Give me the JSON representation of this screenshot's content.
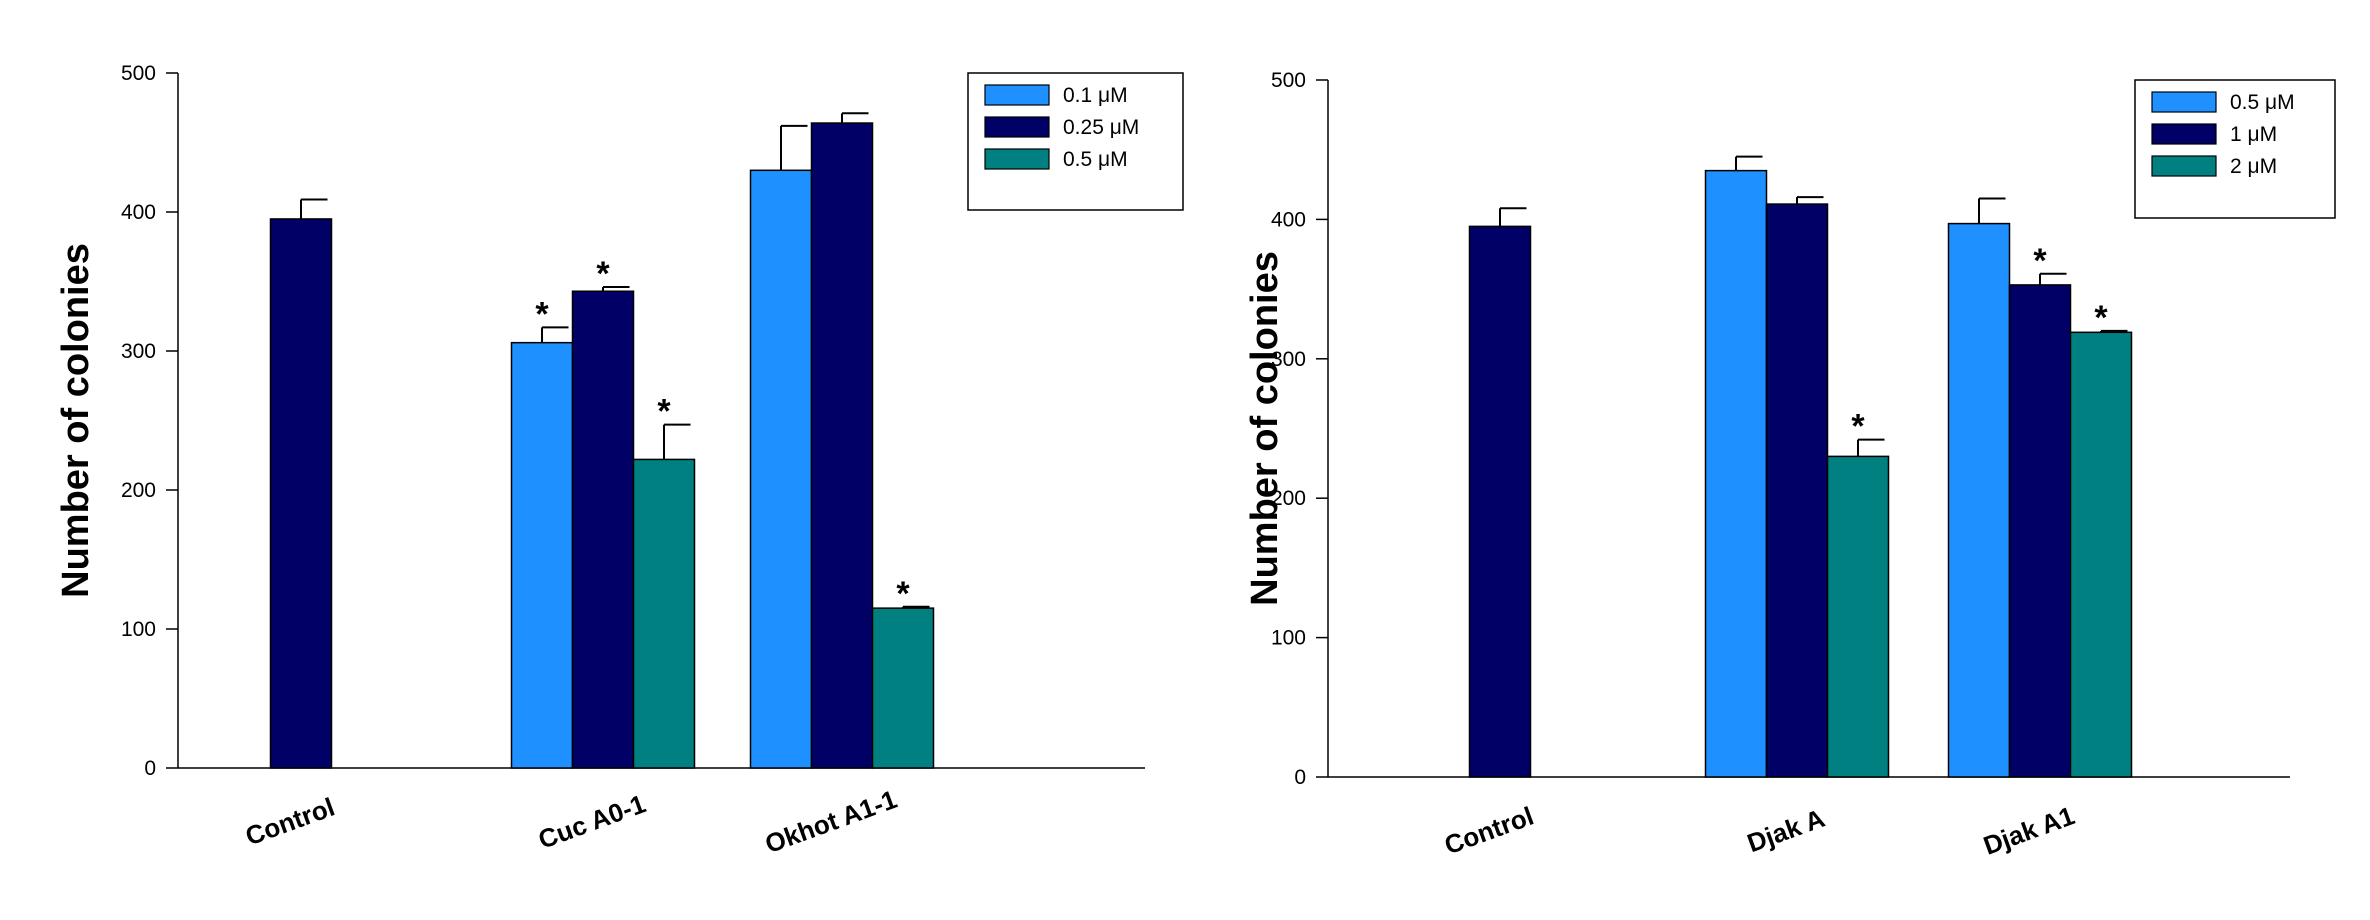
{
  "chart_data": [
    {
      "type": "bar",
      "ylabel": "Number of colonies",
      "xlabel": "",
      "ylim": [
        0,
        500
      ],
      "yticks": [
        0,
        100,
        200,
        300,
        400,
        500
      ],
      "categories": [
        "Control",
        "Cuc A0-1",
        "Okhot A1-1"
      ],
      "legend": {
        "placement": "top-right",
        "entries": [
          {
            "label": "0.1 μM",
            "color": "#1e90ff"
          },
          {
            "label": "0.25 μM",
            "color": "#000066"
          },
          {
            "label": "0.5 μM",
            "color": "#008080"
          }
        ]
      },
      "control": {
        "value": 395,
        "error": 14,
        "color": "#000066"
      },
      "series": [
        {
          "name": "0.1 μM",
          "values": [
            null,
            306,
            430
          ],
          "errors": [
            null,
            11,
            32
          ],
          "significant": [
            false,
            true,
            false
          ]
        },
        {
          "name": "0.25 μM",
          "values": [
            null,
            343,
            464
          ],
          "errors": [
            null,
            3,
            7
          ],
          "significant": [
            false,
            true,
            false
          ]
        },
        {
          "name": "0.5 μM",
          "values": [
            null,
            222,
            115
          ],
          "errors": [
            null,
            25,
            1
          ],
          "significant": [
            false,
            true,
            true
          ]
        }
      ],
      "significance_marker": "*"
    },
    {
      "type": "bar",
      "ylabel": "Number of colonies",
      "xlabel": "",
      "ylim": [
        0,
        500
      ],
      "yticks": [
        0,
        100,
        200,
        300,
        400,
        500
      ],
      "categories": [
        "Control",
        "Djak A",
        "Djak A1"
      ],
      "legend": {
        "placement": "top-right",
        "entries": [
          {
            "label": "0.5 μM",
            "color": "#1e90ff"
          },
          {
            "label": "1 μM",
            "color": "#000066"
          },
          {
            "label": "2 μM",
            "color": "#008080"
          }
        ]
      },
      "control": {
        "value": 395,
        "error": 13,
        "color": "#000066"
      },
      "series": [
        {
          "name": "0.5 μM",
          "values": [
            null,
            435,
            397
          ],
          "errors": [
            null,
            10,
            18
          ],
          "significant": [
            false,
            false,
            false
          ]
        },
        {
          "name": "1 μM",
          "values": [
            null,
            411,
            353
          ],
          "errors": [
            null,
            5,
            8
          ],
          "significant": [
            false,
            false,
            true
          ]
        },
        {
          "name": "2 μM",
          "values": [
            null,
            230,
            319
          ],
          "errors": [
            null,
            12,
            1
          ],
          "significant": [
            false,
            true,
            true
          ]
        }
      ],
      "significance_marker": "*"
    }
  ]
}
